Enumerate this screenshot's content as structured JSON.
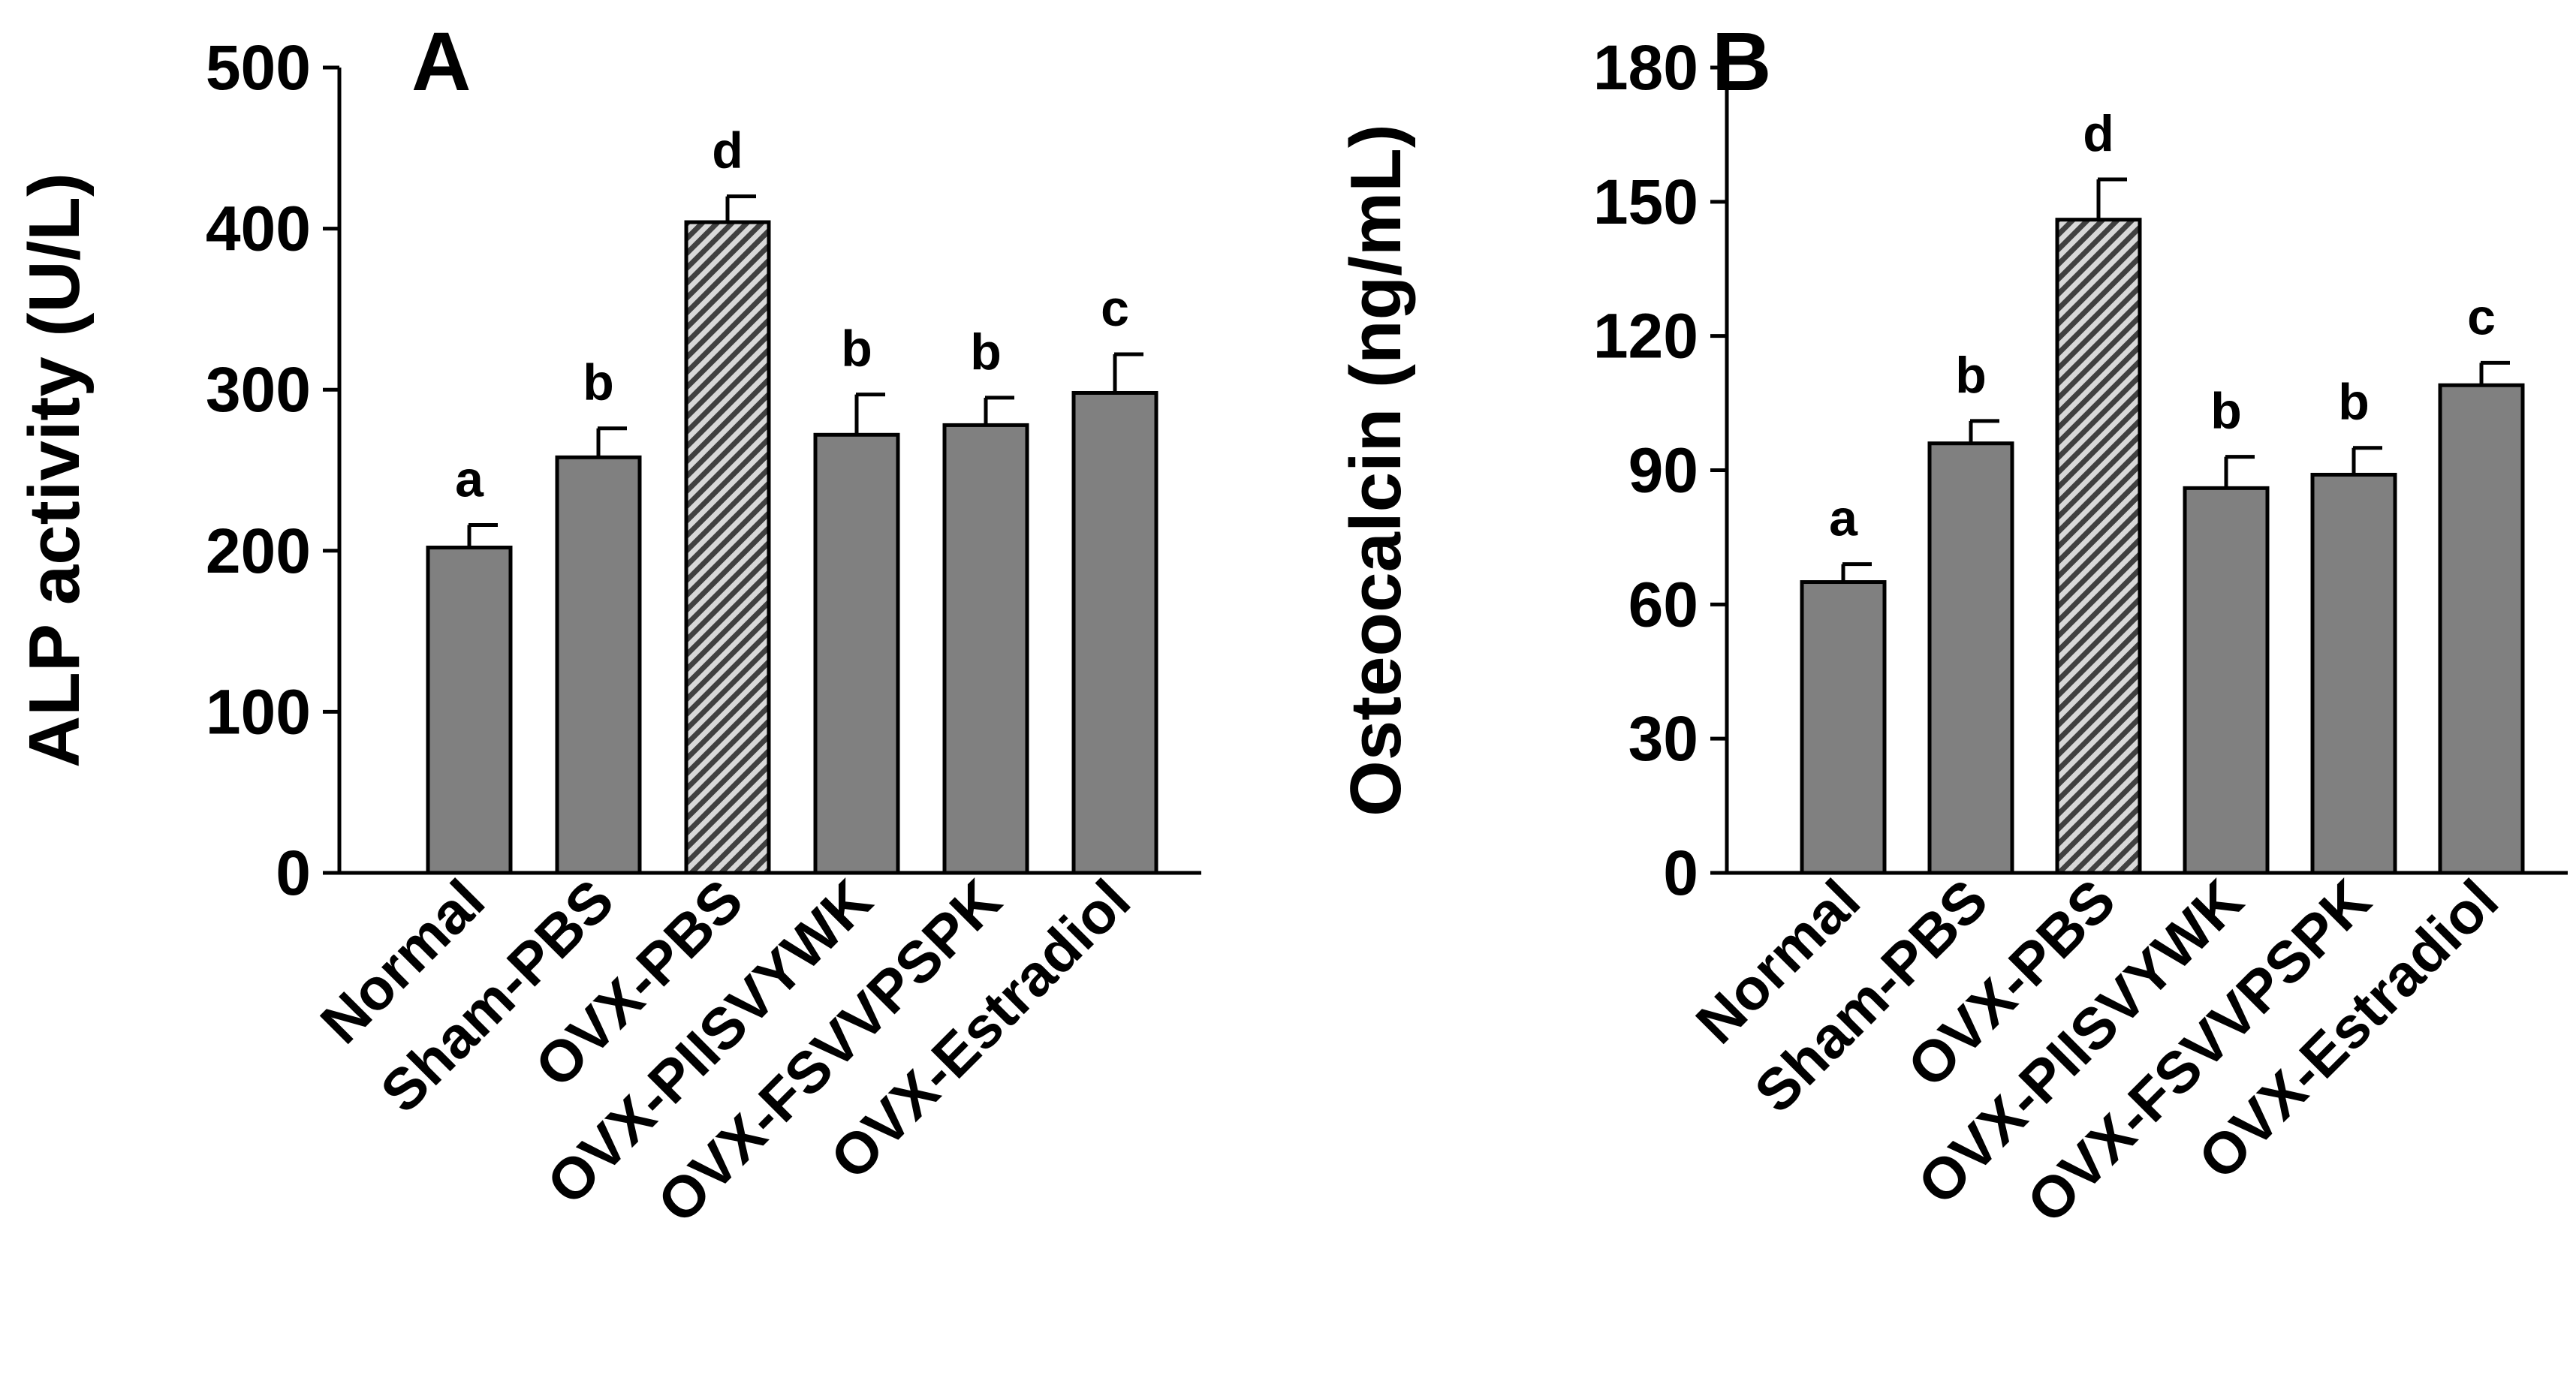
{
  "chart_data": [
    {
      "type": "bar",
      "panel_label": "A",
      "ylabel": "ALP activity (U/L)",
      "xlabel": "",
      "categories": [
        "Normal",
        "Sham-PBS",
        "OVX-PBS",
        "OVX-PIISVYWK",
        "OVX-FSVVPSPK",
        "OVX-Estradiol"
      ],
      "values": [
        202,
        258,
        404,
        272,
        278,
        298
      ],
      "errors": [
        14,
        18,
        16,
        25,
        17,
        24
      ],
      "significance": [
        "a",
        "b",
        "d",
        "b",
        "b",
        "c"
      ],
      "hatched": [
        false,
        false,
        true,
        false,
        false,
        false
      ],
      "ylim": [
        0,
        500
      ],
      "yticks": [
        0,
        100,
        200,
        300,
        400,
        500
      ],
      "colors": {
        "bar": "#808080",
        "hatched_bar": "#404040",
        "axis": "#000000"
      }
    },
    {
      "type": "bar",
      "panel_label": "B",
      "ylabel": "Osteocalcin (ng/mL)",
      "xlabel": "",
      "categories": [
        "Normal",
        "Sham-PBS",
        "OVX-PBS",
        "OVX-PIISVYWK",
        "OVX-FSVVPSPK",
        "OVX-Estradiol"
      ],
      "values": [
        65,
        96,
        146,
        86,
        89,
        109
      ],
      "errors": [
        4,
        5,
        9,
        7,
        6,
        5
      ],
      "significance": [
        "a",
        "b",
        "d",
        "b",
        "b",
        "c"
      ],
      "hatched": [
        false,
        false,
        true,
        false,
        false,
        false
      ],
      "ylim": [
        0,
        180
      ],
      "yticks": [
        0,
        30,
        60,
        90,
        120,
        150,
        180
      ],
      "colors": {
        "bar": "#808080",
        "hatched_bar": "#404040",
        "axis": "#000000"
      }
    }
  ]
}
